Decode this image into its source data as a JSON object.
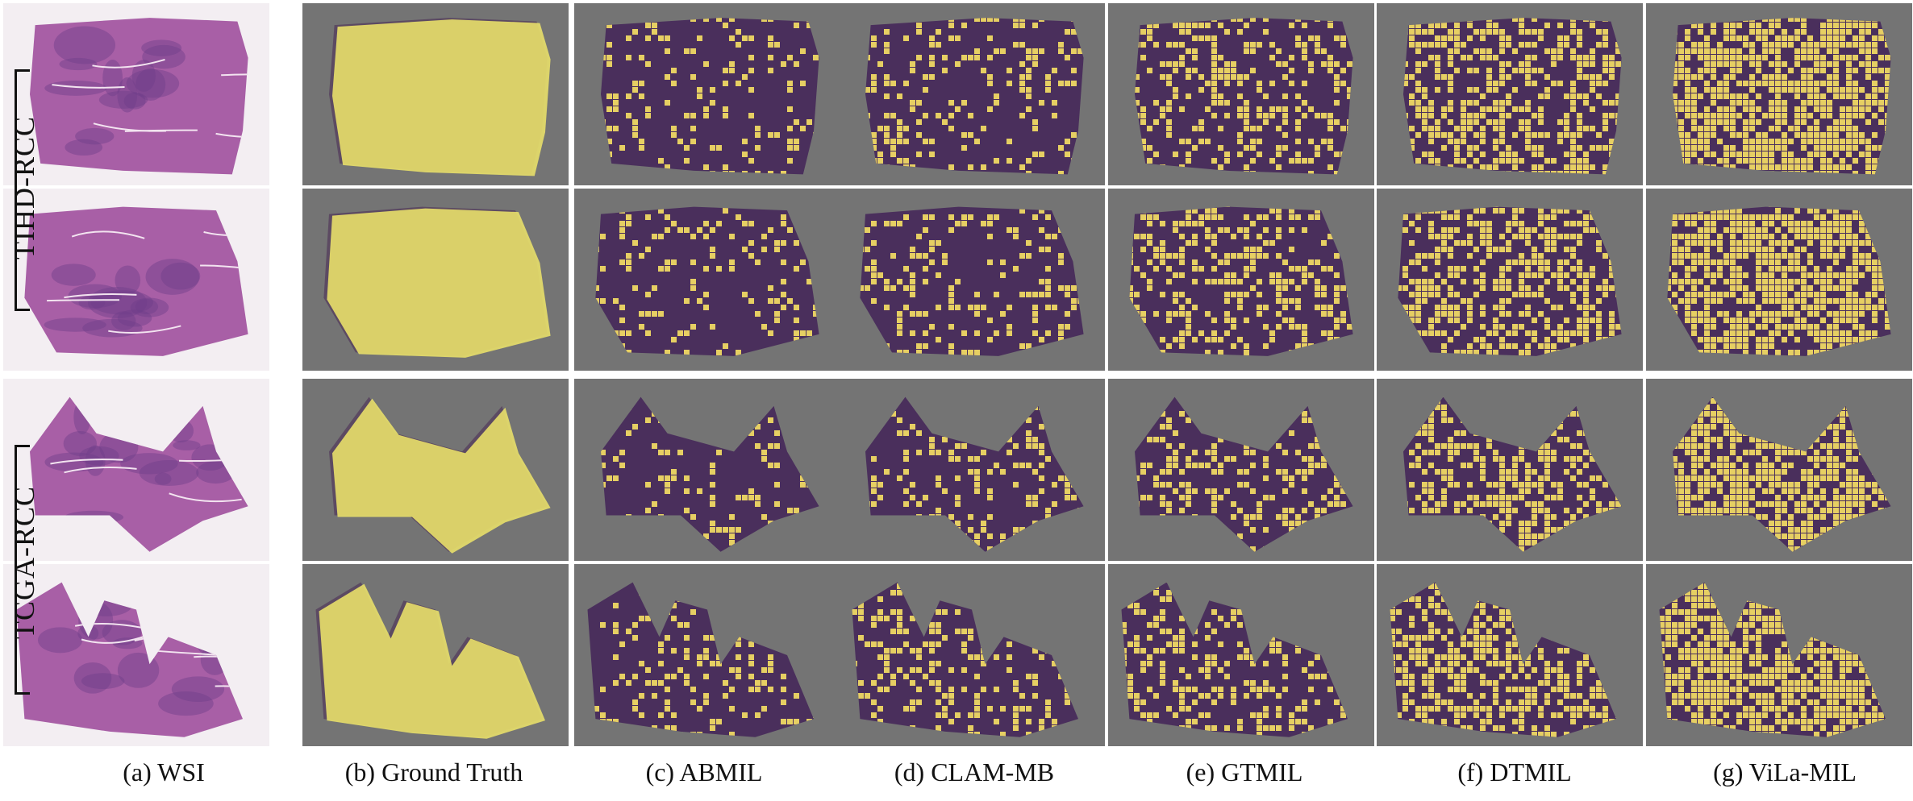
{
  "row_groups": [
    {
      "label": "TIHD-RCC"
    },
    {
      "label": "TCGA-RCC"
    }
  ],
  "columns": [
    {
      "caption": "(a) WSI",
      "style": "he"
    },
    {
      "caption": "(b) Ground Truth",
      "style": "gt"
    },
    {
      "caption": "(c) ABMIL",
      "style": "heat",
      "coverage": 0.18
    },
    {
      "caption": "(d) CLAM-MB",
      "style": "heat",
      "coverage": 0.22
    },
    {
      "caption": "(e) GTMIL",
      "style": "heat",
      "coverage": 0.32
    },
    {
      "caption": "(f) DTMIL",
      "style": "heat",
      "coverage": 0.48
    },
    {
      "caption": "(g) ViLa-MIL",
      "style": "heat",
      "coverage": 0.68
    }
  ],
  "colors": {
    "he_bg": "#f3eef2",
    "he_tissue": "#a85fa6",
    "he_dark": "#6e3f8a",
    "gray_bg": "#747474",
    "gt_yellow": "#e8df6a",
    "heat_dark": "#4a2f5c",
    "heat_yellow": "#e6cf63",
    "grid_line": "#ffffff"
  }
}
